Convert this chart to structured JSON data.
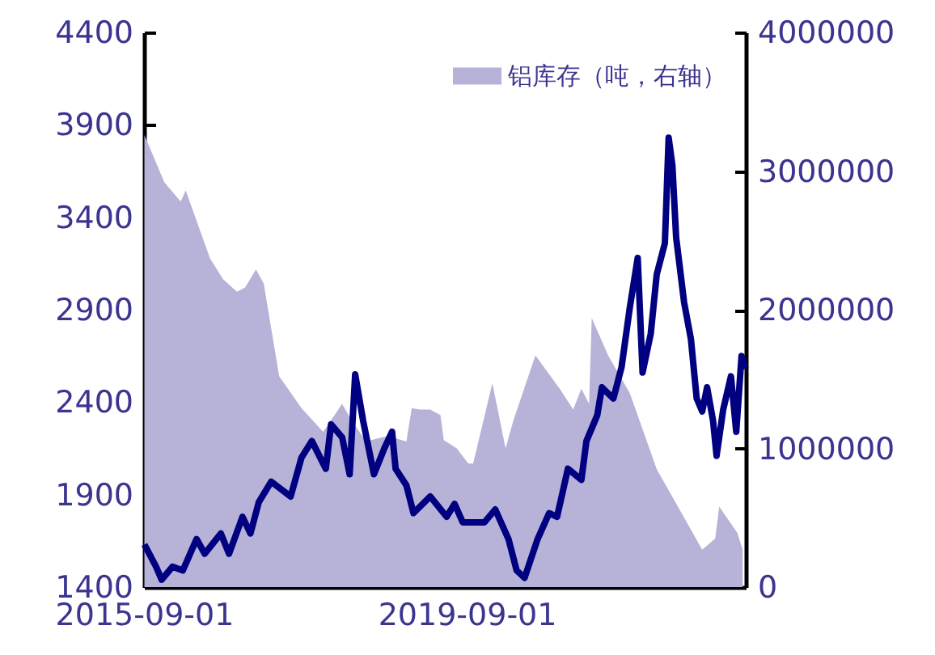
{
  "chart_data": {
    "type": "area",
    "xlim": [
      "2015-09-01",
      "2023-02-15"
    ],
    "xticks": [
      "2015-09-01",
      "2019-09-01"
    ],
    "ylim": [
      1400,
      4400
    ],
    "yticks": [
      1400,
      1900,
      2400,
      2900,
      3400,
      3900,
      4400
    ],
    "y2lim": [
      0,
      4000000
    ],
    "y2ticks": [
      0,
      1000000,
      2000000,
      3000000,
      4000000
    ],
    "legend": "top right",
    "grid": false,
    "series": [
      {
        "name": "铝库存（吨，右轴）",
        "axis": "y2",
        "color": "#b6b2d8",
        "x": [
          "2015-09-03",
          "2015-12-02",
          "2016-02-14",
          "2016-03-08",
          "2016-06-26",
          "2016-08-24",
          "2016-10-26",
          "2016-12-02",
          "2017-01-20",
          "2017-02-24",
          "2017-05-05",
          "2017-08-14",
          "2017-11-20",
          "2018-02-14",
          "2018-03-30",
          "2018-06-02",
          "2018-09-08",
          "2018-12-02",
          "2018-12-26",
          "2019-02-02",
          "2019-03-20",
          "2019-05-05",
          "2019-05-20",
          "2019-07-18",
          "2019-09-08",
          "2019-09-30",
          "2019-12-26",
          "2020-02-24",
          "2020-03-30",
          "2020-07-08",
          "2020-10-26",
          "2020-12-26",
          "2021-02-01",
          "2021-03-08",
          "2021-03-20",
          "2021-06-02",
          "2021-09-08",
          "2022-01-08",
          "2022-04-14",
          "2022-08-02",
          "2022-09-30",
          "2022-10-18",
          "2023-01-08",
          "2023-02-01"
        ],
        "values": [
          3260000,
          2920000,
          2780000,
          2860000,
          2370000,
          2220000,
          2130000,
          2160000,
          2290000,
          2190000,
          1520000,
          1290000,
          1120000,
          1320000,
          1200000,
          1050000,
          1090000,
          1050000,
          1290000,
          1280000,
          1280000,
          1240000,
          1060000,
          1000000,
          890000,
          890000,
          1470000,
          1000000,
          1200000,
          1670000,
          1430000,
          1280000,
          1430000,
          1320000,
          1940000,
          1670000,
          1400000,
          850000,
          580000,
          270000,
          350000,
          580000,
          390000,
          270000
        ]
      },
      {
        "type": "line",
        "axis": "y",
        "color": "#000080",
        "x": [
          "2015-09-03",
          "2015-10-26",
          "2015-11-20",
          "2016-01-08",
          "2016-02-24",
          "2016-04-26",
          "2016-06-02",
          "2016-08-14",
          "2016-09-20",
          "2016-11-20",
          "2016-12-26",
          "2017-02-02",
          "2017-03-30",
          "2017-06-26",
          "2017-08-14",
          "2017-09-30",
          "2017-12-02",
          "2017-12-26",
          "2018-02-14",
          "2018-03-20",
          "2018-04-14",
          "2018-05-20",
          "2018-07-08",
          "2018-08-24",
          "2018-09-28",
          "2018-10-14",
          "2018-12-02",
          "2019-01-03",
          "2019-03-20",
          "2019-06-02",
          "2019-07-08",
          "2019-08-14",
          "2019-11-20",
          "2020-01-08",
          "2020-03-08",
          "2020-04-14",
          "2020-05-20",
          "2020-07-18",
          "2020-09-08",
          "2020-10-14",
          "2020-12-02",
          "2021-02-01",
          "2021-02-24",
          "2021-04-14",
          "2021-05-05",
          "2021-06-26",
          "2021-08-02",
          "2021-09-08",
          "2021-10-14",
          "2021-11-05",
          "2021-12-12",
          "2022-01-08",
          "2022-02-14",
          "2022-03-03",
          "2022-03-20",
          "2022-04-06",
          "2022-05-12",
          "2022-06-12",
          "2022-07-08",
          "2022-08-02",
          "2022-08-24",
          "2022-09-20",
          "2022-10-06",
          "2022-11-05",
          "2022-12-10",
          "2023-01-03",
          "2023-01-27",
          "2023-02-14"
        ],
        "values": [
          1630,
          1510,
          1440,
          1510,
          1490,
          1660,
          1580,
          1690,
          1580,
          1780,
          1690,
          1860,
          1970,
          1890,
          2100,
          2190,
          2040,
          2280,
          2210,
          2010,
          2550,
          2300,
          2010,
          2150,
          2240,
          2040,
          1950,
          1800,
          1890,
          1780,
          1850,
          1750,
          1750,
          1820,
          1660,
          1490,
          1450,
          1660,
          1800,
          1780,
          2040,
          1980,
          2190,
          2330,
          2480,
          2420,
          2590,
          2910,
          3180,
          2560,
          2770,
          3090,
          3260,
          3830,
          3680,
          3290,
          2940,
          2740,
          2420,
          2350,
          2480,
          2300,
          2110,
          2360,
          2540,
          2240,
          2650,
          2580
        ]
      }
    ]
  }
}
